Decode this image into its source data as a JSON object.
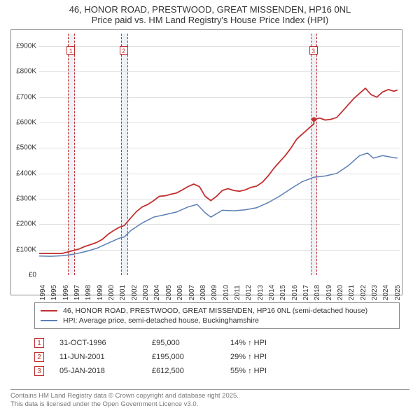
{
  "title": {
    "line1": "46, HONOR ROAD, PRESTWOOD, GREAT MISSENDEN, HP16 0NL",
    "line2": "Price paid vs. HM Land Registry's House Price Index (HPI)"
  },
  "chart": {
    "type": "line",
    "background_color": "#ffffff",
    "grid_color": "#e0e0e0",
    "border_color": "#888888",
    "x": {
      "min": 1994,
      "max": 2025.5,
      "ticks": [
        1994,
        1995,
        1996,
        1997,
        1998,
        1999,
        2000,
        2001,
        2002,
        2003,
        2004,
        2005,
        2006,
        2007,
        2008,
        2009,
        2010,
        2011,
        2012,
        2013,
        2014,
        2015,
        2016,
        2017,
        2018,
        2019,
        2020,
        2021,
        2022,
        2023,
        2024,
        2025
      ],
      "tick_fontsize": 10,
      "tick_color": "#333333",
      "rotation": -90
    },
    "y": {
      "min": 0,
      "max": 950000,
      "ticks": [
        0,
        100000,
        200000,
        300000,
        400000,
        500000,
        600000,
        700000,
        800000,
        900000
      ],
      "labels": [
        "£0",
        "£100K",
        "£200K",
        "£300K",
        "£400K",
        "£500K",
        "£600K",
        "£700K",
        "£800K",
        "£900K"
      ],
      "tick_fontsize": 10,
      "tick_color": "#333333"
    },
    "markers": [
      {
        "n": "1",
        "year": 1996.83,
        "band_width_years": 0.6
      },
      {
        "n": "2",
        "year": 2001.44,
        "band_width_years": 0.6
      },
      {
        "n": "3",
        "year": 2018.01,
        "band_width_years": 0.6
      }
    ],
    "marker_style": {
      "band_fill": "rgba(220,225,235,0.45)",
      "dash_color": "#c23030",
      "box_border": "#c23030",
      "box_text_color": "#c23030",
      "box_size": 12,
      "box_fontsize": 9
    },
    "series": [
      {
        "name": "property",
        "label": "46, HONOR ROAD, PRESTWOOD, GREAT MISSENDEN, HP16 0NL (semi-detached house)",
        "color": "#c23030",
        "width": 1.8,
        "data": [
          [
            1994.0,
            85000
          ],
          [
            1995.0,
            85000
          ],
          [
            1996.0,
            85000
          ],
          [
            1996.83,
            95000
          ],
          [
            1997.5,
            103000
          ],
          [
            1998.0,
            113000
          ],
          [
            1998.5,
            120000
          ],
          [
            1999.0,
            128000
          ],
          [
            1999.5,
            140000
          ],
          [
            2000.0,
            160000
          ],
          [
            2000.5,
            175000
          ],
          [
            2001.0,
            188000
          ],
          [
            2001.44,
            195000
          ],
          [
            2002.0,
            225000
          ],
          [
            2002.5,
            250000
          ],
          [
            2003.0,
            268000
          ],
          [
            2003.5,
            278000
          ],
          [
            2004.0,
            293000
          ],
          [
            2004.5,
            310000
          ],
          [
            2005.0,
            312000
          ],
          [
            2005.5,
            318000
          ],
          [
            2006.0,
            323000
          ],
          [
            2006.5,
            335000
          ],
          [
            2007.0,
            348000
          ],
          [
            2007.5,
            358000
          ],
          [
            2008.0,
            348000
          ],
          [
            2008.5,
            310000
          ],
          [
            2009.0,
            293000
          ],
          [
            2009.5,
            310000
          ],
          [
            2010.0,
            333000
          ],
          [
            2010.5,
            340000
          ],
          [
            2011.0,
            333000
          ],
          [
            2011.5,
            330000
          ],
          [
            2012.0,
            335000
          ],
          [
            2012.5,
            345000
          ],
          [
            2013.0,
            350000
          ],
          [
            2013.5,
            365000
          ],
          [
            2014.0,
            390000
          ],
          [
            2014.5,
            420000
          ],
          [
            2015.0,
            445000
          ],
          [
            2015.5,
            470000
          ],
          [
            2016.0,
            500000
          ],
          [
            2016.5,
            535000
          ],
          [
            2017.0,
            555000
          ],
          [
            2017.5,
            575000
          ],
          [
            2018.0,
            595000
          ],
          [
            2018.01,
            612500
          ],
          [
            2018.5,
            618000
          ],
          [
            2019.0,
            610000
          ],
          [
            2019.5,
            613000
          ],
          [
            2020.0,
            620000
          ],
          [
            2020.5,
            645000
          ],
          [
            2021.0,
            670000
          ],
          [
            2021.5,
            695000
          ],
          [
            2022.0,
            715000
          ],
          [
            2022.5,
            735000
          ],
          [
            2023.0,
            710000
          ],
          [
            2023.5,
            700000
          ],
          [
            2024.0,
            720000
          ],
          [
            2024.5,
            730000
          ],
          [
            2025.0,
            723000
          ],
          [
            2025.3,
            728000
          ]
        ]
      },
      {
        "name": "hpi",
        "label": "HPI: Average price, semi-detached house, Buckinghamshire",
        "color": "#5b7fb5",
        "width": 1.5,
        "data": [
          [
            1994.0,
            75000
          ],
          [
            1995.0,
            74000
          ],
          [
            1996.0,
            76000
          ],
          [
            1997.0,
            82000
          ],
          [
            1998.0,
            92000
          ],
          [
            1999.0,
            105000
          ],
          [
            2000.0,
            125000
          ],
          [
            2001.0,
            145000
          ],
          [
            2001.44,
            150000
          ],
          [
            2002.0,
            175000
          ],
          [
            2003.0,
            205000
          ],
          [
            2004.0,
            228000
          ],
          [
            2005.0,
            238000
          ],
          [
            2006.0,
            248000
          ],
          [
            2007.0,
            268000
          ],
          [
            2007.8,
            278000
          ],
          [
            2008.5,
            245000
          ],
          [
            2009.0,
            228000
          ],
          [
            2010.0,
            255000
          ],
          [
            2011.0,
            253000
          ],
          [
            2012.0,
            257000
          ],
          [
            2013.0,
            265000
          ],
          [
            2014.0,
            285000
          ],
          [
            2015.0,
            310000
          ],
          [
            2016.0,
            340000
          ],
          [
            2017.0,
            368000
          ],
          [
            2018.0,
            385000
          ],
          [
            2019.0,
            390000
          ],
          [
            2020.0,
            400000
          ],
          [
            2021.0,
            430000
          ],
          [
            2022.0,
            470000
          ],
          [
            2022.7,
            480000
          ],
          [
            2023.2,
            460000
          ],
          [
            2024.0,
            470000
          ],
          [
            2025.0,
            462000
          ],
          [
            2025.3,
            460000
          ]
        ]
      }
    ]
  },
  "legend": {
    "border_color": "#888888",
    "fontsize": 10.5,
    "text_color": "#333333",
    "items": [
      {
        "color": "#c23030",
        "width": 2,
        "label_ref": "chart.series.0.label"
      },
      {
        "color": "#5b7fb5",
        "width": 2,
        "label_ref": "chart.series.1.label"
      }
    ]
  },
  "transactions": {
    "fontsize": 11,
    "marker_border": "#c23030",
    "marker_text_color": "#c23030",
    "arrow_glyph": "↑",
    "rows": [
      {
        "n": "1",
        "date": "31-OCT-1996",
        "price": "£95,000",
        "pct": "14% ↑ HPI"
      },
      {
        "n": "2",
        "date": "11-JUN-2001",
        "price": "£195,000",
        "pct": "29% ↑ HPI"
      },
      {
        "n": "3",
        "date": "05-JAN-2018",
        "price": "£612,500",
        "pct": "55% ↑ HPI"
      }
    ]
  },
  "footer": {
    "line1": "Contains HM Land Registry data © Crown copyright and database right 2025.",
    "line2": "This data is licensed under the Open Government Licence v3.0.",
    "fontsize": 9.5,
    "color": "#777777",
    "border_color": "#999999"
  }
}
